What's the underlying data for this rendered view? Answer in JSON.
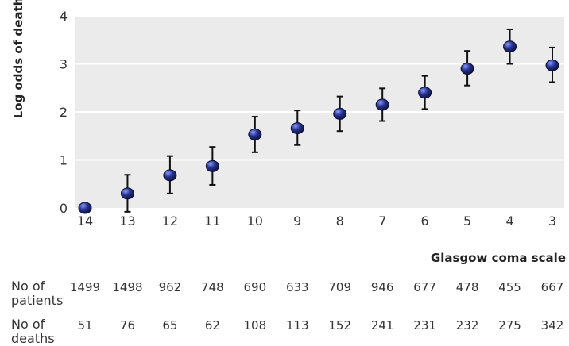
{
  "chart_data": {
    "type": "scatter",
    "ylabel": "Log odds of death",
    "xlabel": "Glasgow coma scale",
    "ylim": [
      0,
      4
    ],
    "yticks": [
      0,
      1,
      2,
      3,
      4
    ],
    "grid": "horizontal",
    "categories": [
      "14",
      "13",
      "12",
      "11",
      "10",
      "9",
      "8",
      "7",
      "6",
      "5",
      "4",
      "3"
    ],
    "values": [
      0.0,
      0.3,
      0.68,
      0.87,
      1.53,
      1.66,
      1.96,
      2.15,
      2.4,
      2.9,
      3.36,
      2.97
    ],
    "ci_lower": [
      null,
      -0.08,
      0.3,
      0.48,
      1.16,
      1.31,
      1.6,
      1.81,
      2.06,
      2.55,
      3.0,
      2.62
    ],
    "ci_upper": [
      null,
      0.69,
      1.08,
      1.27,
      1.9,
      2.03,
      2.32,
      2.49,
      2.75,
      3.27,
      3.72,
      3.34
    ],
    "colors": {
      "marker": "#1a237e",
      "background": "#ebebeb",
      "grid": "#ffffff"
    }
  },
  "table": {
    "rows": [
      {
        "label_lines": [
          "No of",
          "patients"
        ],
        "values": [
          "1499",
          "1498",
          "962",
          "748",
          "690",
          "633",
          "709",
          "946",
          "677",
          "478",
          "455",
          "667"
        ]
      },
      {
        "label_lines": [
          "No of",
          "deaths"
        ],
        "values": [
          "51",
          "76",
          "65",
          "62",
          "108",
          "113",
          "152",
          "241",
          "231",
          "232",
          "275",
          "342"
        ]
      }
    ]
  }
}
